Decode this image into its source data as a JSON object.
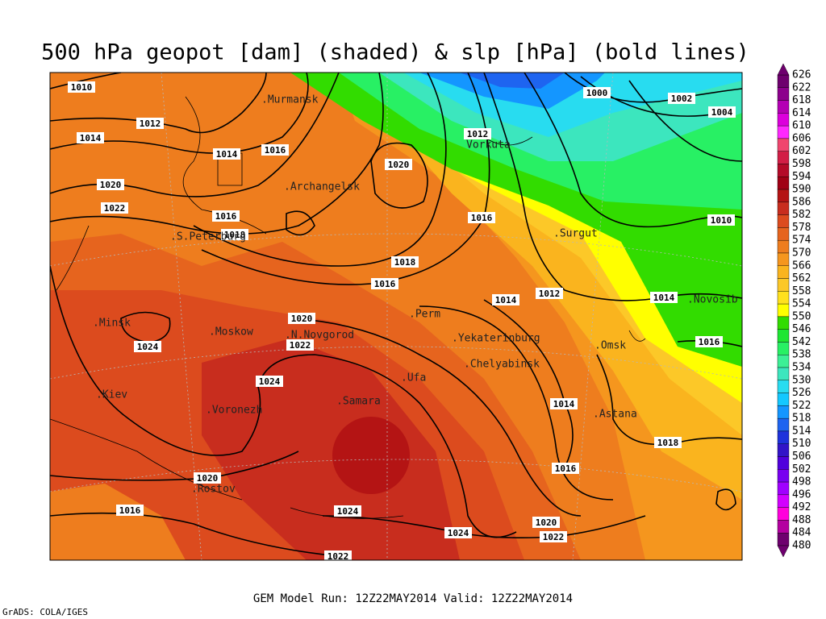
{
  "title": "500 hPa geopot [dam] (shaded) & slp [hPa] (bold lines)",
  "footer": {
    "model_run": "GEM Model Run: 12Z22MAY2014 Valid: 12Z22MAY2014",
    "credit": "GrADS: COLA/IGES"
  },
  "cities": [
    ".Murmansk",
    "Vorkuta",
    ".Archangelsk",
    ".S.Peterburg",
    ".Surgut",
    ".Perm",
    ".Novosib",
    ".Minsk",
    ".Moskow",
    ".N.Novgorod",
    ".Yekaterinburg",
    ".Omsk",
    ".Chelyabinsk",
    ".Ufa",
    ".Kiev",
    ".Samara",
    ".Voronezh",
    ".Astana",
    ".Rostov"
  ],
  "isobar_labels": [
    "1010",
    "1012",
    "1014",
    "1014",
    "1016",
    "1020",
    "1022",
    "1016",
    "1018",
    "1020",
    "1012",
    "1016",
    "1018",
    "1016",
    "1014",
    "1012",
    "1000",
    "1002",
    "1004",
    "1010",
    "1014",
    "1016",
    "1018",
    "1020",
    "1022",
    "1024",
    "1024",
    "1014",
    "1016",
    "1020",
    "1016",
    "1024",
    "1024",
    "1020",
    "1022",
    "1022"
  ],
  "colorbar": {
    "labels": [
      626,
      622,
      618,
      614,
      610,
      606,
      602,
      598,
      594,
      590,
      586,
      582,
      578,
      574,
      570,
      566,
      562,
      558,
      554,
      550,
      546,
      542,
      538,
      534,
      530,
      526,
      522,
      518,
      514,
      510,
      506,
      502,
      498,
      496,
      492,
      488,
      484,
      480
    ],
    "colors": [
      "#6e006e",
      "#8c008c",
      "#b400b4",
      "#dc00dc",
      "#ff28ff",
      "#f0466e",
      "#d21e46",
      "#b40a28",
      "#a00014",
      "#b41414",
      "#c82d1e",
      "#dc4b1e",
      "#e6641e",
      "#ee7d1e",
      "#f5961e",
      "#fab41e",
      "#fcc828",
      "#ffe11e",
      "#ffff00",
      "#32dc00",
      "#1ee632",
      "#28f064",
      "#3cf096",
      "#3ce6be",
      "#28dcf0",
      "#14c8ff",
      "#1496ff",
      "#1e64f0",
      "#1e32dc",
      "#3214c8",
      "#5000dc",
      "#7800f0",
      "#a000ff",
      "#d200ff",
      "#ff00dc",
      "#b400a0",
      "#6e006e"
    ]
  }
}
